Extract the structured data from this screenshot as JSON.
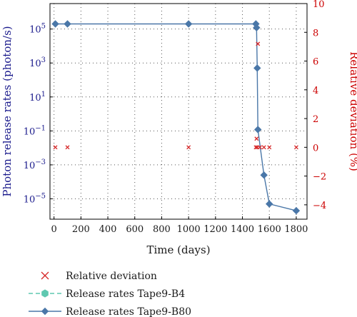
{
  "chart_data": {
    "type": "line",
    "xlabel": "Time (days)",
    "ylabel_left": "Photon release rates (photon/s)",
    "ylabel_right": "Relative deviation (%)",
    "xlim": [
      -30,
      1880
    ],
    "xticks": [
      0,
      200,
      400,
      600,
      800,
      1000,
      1200,
      1400,
      1600,
      1800
    ],
    "ylim_left_log10": [
      -6.2,
      6.5
    ],
    "yticks_left_exp": [
      5,
      3,
      1,
      -1,
      -3,
      -5
    ],
    "yticks_left_labels": [
      {
        "base": "10",
        "exp": "5"
      },
      {
        "base": "10",
        "exp": "3"
      },
      {
        "base": "10",
        "exp": "1"
      },
      {
        "base": "10",
        "exp": "−1"
      },
      {
        "base": "10",
        "exp": "−3"
      },
      {
        "base": "10",
        "exp": "−5"
      }
    ],
    "ylim_right": [
      -5,
      10
    ],
    "yticks_right": [
      10,
      8,
      6,
      4,
      2,
      0,
      -2,
      -4
    ],
    "grid": true,
    "legend_placement": "bottom",
    "series": [
      {
        "name": "Relative deviation",
        "axis": "right",
        "marker": "x",
        "color": "#d62728",
        "x": [
          10,
          100,
          1000,
          1500,
          1505,
          1510,
          1515,
          1530,
          1560,
          1600,
          1800
        ],
        "y": [
          0,
          0,
          0,
          0,
          0.6,
          0,
          7.2,
          0,
          0,
          0,
          0
        ]
      },
      {
        "name": "Release rates Tape9-B4",
        "axis": "left",
        "marker": "hexagon",
        "line": "dashed",
        "color": "#5fc8b0",
        "x": [],
        "y": []
      },
      {
        "name": "Release rates Tape9-B80",
        "axis": "left",
        "marker": "diamond",
        "line": "solid",
        "color": "#4a77a8",
        "x": [
          10,
          100,
          1000,
          1500,
          1505,
          1510,
          1515,
          1560,
          1600,
          1800
        ],
        "y": [
          200000.0,
          200000.0,
          200000.0,
          200000.0,
          120000.0,
          500.0,
          0.12,
          0.00025,
          5e-06,
          2e-06
        ]
      }
    ]
  }
}
